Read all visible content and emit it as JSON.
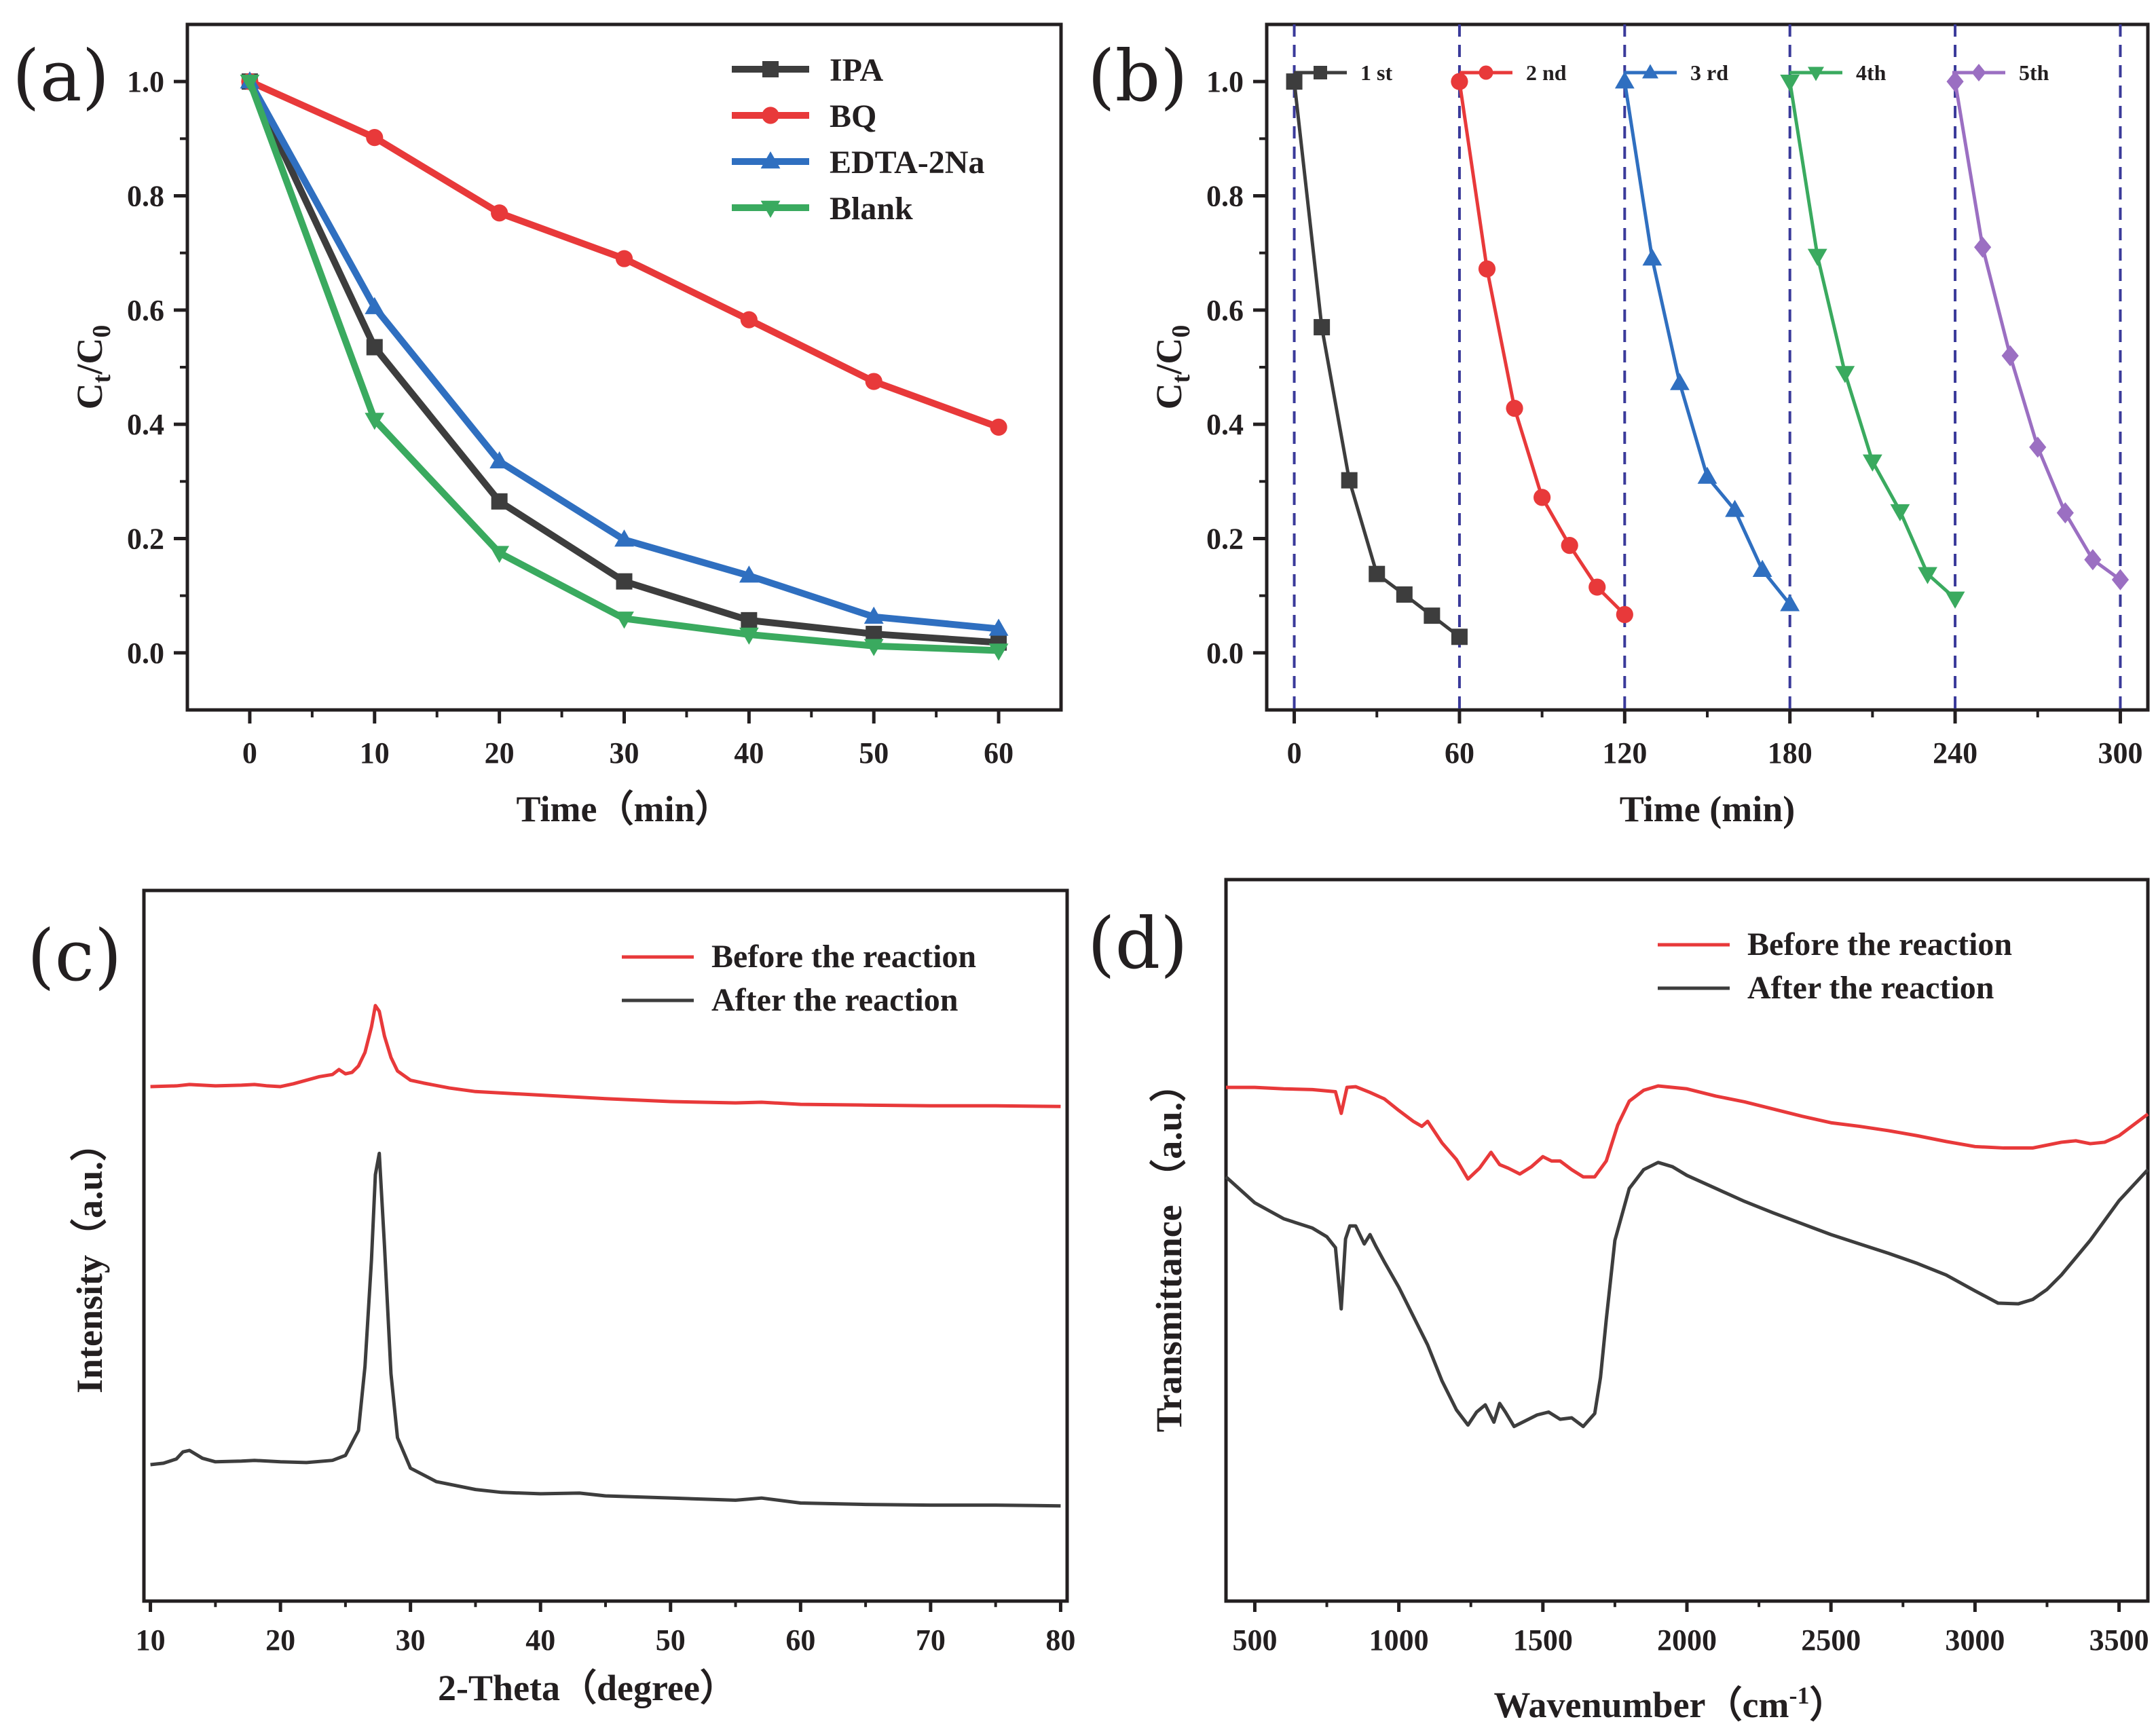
{
  "chart_data": [
    {
      "type": "line",
      "panel": "(a)",
      "xlabel": "Time（min）",
      "ylabel_main": "C",
      "ylabel_sub1": "t",
      "ylabel_slash": "/C",
      "ylabel_sub2": "0",
      "xlim": [
        -5,
        65
      ],
      "ylim": [
        -0.1,
        1.1
      ],
      "xticks": [
        0,
        10,
        20,
        30,
        40,
        50,
        60
      ],
      "yticks": [
        0.0,
        0.2,
        0.4,
        0.6,
        0.8,
        1.0
      ],
      "ytick_labels": [
        "0.0",
        "0.2",
        "0.4",
        "0.6",
        "0.8",
        "1.0"
      ],
      "legend_position": "top-right",
      "x": [
        0,
        10,
        20,
        30,
        40,
        50,
        60
      ],
      "series": [
        {
          "name": "IPA",
          "color": "#3d3d3d",
          "marker": "square",
          "values": [
            1.0,
            0.535,
            0.265,
            0.125,
            0.057,
            0.033,
            0.018
          ]
        },
        {
          "name": "BQ",
          "color": "#e8393a",
          "marker": "circle",
          "values": [
            1.0,
            0.902,
            0.77,
            0.69,
            0.583,
            0.475,
            0.395
          ]
        },
        {
          "name": "EDTA-2Na",
          "color": "#2f6fc0",
          "marker": "triangle-up",
          "values": [
            1.0,
            0.605,
            0.335,
            0.198,
            0.135,
            0.063,
            0.042
          ]
        },
        {
          "name": "Blank",
          "color": "#3aaa5f",
          "marker": "triangle-down",
          "values": [
            1.0,
            0.408,
            0.175,
            0.06,
            0.032,
            0.012,
            0.004
          ]
        }
      ]
    },
    {
      "type": "line",
      "panel": "(b)",
      "xlabel": "Time (min)",
      "ylabel_main": "C",
      "ylabel_sub1": "t",
      "ylabel_slash": "/C",
      "ylabel_sub2": "0",
      "xlim": [
        -10,
        310
      ],
      "ylim": [
        -0.1,
        1.1
      ],
      "xticks": [
        0,
        60,
        120,
        180,
        240,
        300
      ],
      "yticks": [
        0.0,
        0.2,
        0.4,
        0.6,
        0.8,
        1.0
      ],
      "ytick_labels": [
        "0.0",
        "0.2",
        "0.4",
        "0.6",
        "0.8",
        "1.0"
      ],
      "vlines": [
        0,
        60,
        120,
        180,
        240,
        300
      ],
      "vline_color": "#3a3a9a",
      "legend_position": "top",
      "series": [
        {
          "name": "1 st",
          "color": "#3d3d3d",
          "marker": "square",
          "x": [
            0,
            10,
            20,
            30,
            40,
            50,
            60
          ],
          "values": [
            1.0,
            0.57,
            0.302,
            0.138,
            0.102,
            0.065,
            0.028
          ]
        },
        {
          "name": "2 nd",
          "color": "#e8393a",
          "marker": "circle",
          "x": [
            60,
            70,
            80,
            90,
            100,
            110,
            120
          ],
          "values": [
            1.0,
            0.672,
            0.428,
            0.272,
            0.188,
            0.115,
            0.067
          ]
        },
        {
          "name": "3 rd",
          "color": "#2f6fc0",
          "marker": "triangle-up",
          "x": [
            120,
            130,
            140,
            150,
            160,
            170,
            180
          ],
          "values": [
            1.0,
            0.69,
            0.472,
            0.308,
            0.25,
            0.145,
            0.085
          ]
        },
        {
          "name": "4th",
          "color": "#3aaa5f",
          "marker": "triangle-down",
          "x": [
            180,
            190,
            200,
            210,
            220,
            230,
            240
          ],
          "values": [
            1.0,
            0.695,
            0.49,
            0.335,
            0.248,
            0.138,
            0.095
          ]
        },
        {
          "name": "5th",
          "color": "#9b6fc2",
          "marker": "diamond",
          "x": [
            240,
            250,
            260,
            270,
            280,
            290,
            300
          ],
          "values": [
            1.0,
            0.71,
            0.52,
            0.36,
            0.245,
            0.163,
            0.128
          ]
        }
      ]
    },
    {
      "type": "line",
      "panel": "(c)",
      "xlabel": "2-Theta（degree）",
      "ylabel": "Intensity（a.u.）",
      "xlim": [
        9.5,
        80.5
      ],
      "ylim": [
        0,
        1
      ],
      "xticks": [
        10,
        20,
        30,
        40,
        50,
        60,
        70,
        80
      ],
      "legend_position": "top-right",
      "series": [
        {
          "name": "Before the reaction",
          "color": "#e8393a",
          "x": [
            10,
            12,
            13,
            15,
            17,
            18,
            19,
            20,
            21,
            22,
            23,
            24,
            24.5,
            25,
            25.5,
            26,
            26.5,
            27,
            27.3,
            27.6,
            28,
            28.5,
            29,
            30,
            31,
            33,
            35,
            40,
            45,
            50,
            55,
            57,
            60,
            65,
            70,
            75,
            80
          ],
          "values": [
            0.724,
            0.725,
            0.727,
            0.725,
            0.726,
            0.727,
            0.725,
            0.724,
            0.728,
            0.733,
            0.738,
            0.741,
            0.748,
            0.742,
            0.744,
            0.753,
            0.772,
            0.808,
            0.838,
            0.83,
            0.795,
            0.765,
            0.746,
            0.733,
            0.729,
            0.722,
            0.717,
            0.712,
            0.707,
            0.703,
            0.701,
            0.702,
            0.699,
            0.698,
            0.697,
            0.697,
            0.696
          ]
        },
        {
          "name": "After the reaction",
          "color": "#3d3d3d",
          "x": [
            10,
            11,
            12,
            12.5,
            13,
            14,
            15,
            17,
            18,
            20,
            22,
            24,
            25,
            26,
            26.5,
            27,
            27.3,
            27.6,
            28,
            28.5,
            29,
            30,
            32,
            35,
            37,
            40,
            43,
            45,
            50,
            55,
            57,
            60,
            65,
            70,
            75,
            80
          ],
          "values": [
            0.192,
            0.194,
            0.2,
            0.21,
            0.212,
            0.201,
            0.196,
            0.197,
            0.198,
            0.196,
            0.195,
            0.198,
            0.205,
            0.24,
            0.33,
            0.48,
            0.6,
            0.63,
            0.5,
            0.32,
            0.23,
            0.187,
            0.168,
            0.157,
            0.153,
            0.151,
            0.152,
            0.148,
            0.145,
            0.142,
            0.145,
            0.138,
            0.136,
            0.135,
            0.135,
            0.134
          ]
        }
      ],
      "ticks_y_hidden": true
    },
    {
      "type": "line",
      "panel": "(d)",
      "xlabel_main": "Wavenumber（cm",
      "xlabel_sup": "-1",
      "xlabel_end": "）",
      "ylabel": "Transmittance （a.u.）",
      "xlim": [
        400,
        3600
      ],
      "ylim": [
        0,
        1
      ],
      "xticks": [
        500,
        1000,
        1500,
        2000,
        2500,
        3000,
        3500
      ],
      "legend_position": "top-right",
      "series": [
        {
          "name": "Before the reaction",
          "color": "#e8393a",
          "x": [
            400,
            500,
            600,
            700,
            780,
            800,
            820,
            850,
            900,
            950,
            1000,
            1050,
            1080,
            1100,
            1150,
            1200,
            1240,
            1280,
            1320,
            1350,
            1380,
            1420,
            1460,
            1500,
            1530,
            1560,
            1600,
            1640,
            1680,
            1720,
            1760,
            1800,
            1850,
            1900,
            2000,
            2100,
            2200,
            2300,
            2400,
            2500,
            2600,
            2700,
            2800,
            2900,
            3000,
            3100,
            3200,
            3300,
            3350,
            3400,
            3450,
            3500,
            3600
          ],
          "values": [
            0.712,
            0.712,
            0.71,
            0.709,
            0.706,
            0.676,
            0.712,
            0.713,
            0.705,
            0.696,
            0.68,
            0.665,
            0.658,
            0.665,
            0.635,
            0.612,
            0.585,
            0.6,
            0.622,
            0.605,
            0.6,
            0.592,
            0.602,
            0.616,
            0.61,
            0.61,
            0.598,
            0.588,
            0.588,
            0.61,
            0.66,
            0.693,
            0.708,
            0.714,
            0.71,
            0.7,
            0.692,
            0.682,
            0.672,
            0.663,
            0.658,
            0.652,
            0.645,
            0.637,
            0.63,
            0.628,
            0.628,
            0.636,
            0.638,
            0.634,
            0.636,
            0.645,
            0.675
          ]
        },
        {
          "name": "After the reaction",
          "color": "#3d3d3d",
          "x": [
            400,
            450,
            500,
            600,
            700,
            750,
            780,
            800,
            815,
            830,
            850,
            880,
            900,
            920,
            950,
            1000,
            1050,
            1100,
            1150,
            1200,
            1240,
            1270,
            1300,
            1330,
            1350,
            1370,
            1400,
            1440,
            1480,
            1520,
            1560,
            1600,
            1640,
            1680,
            1700,
            1720,
            1750,
            1800,
            1850,
            1900,
            1950,
            2000,
            2100,
            2200,
            2300,
            2400,
            2500,
            2600,
            2700,
            2800,
            2900,
            3000,
            3080,
            3150,
            3200,
            3250,
            3300,
            3400,
            3500,
            3600
          ],
          "values": [
            0.588,
            0.57,
            0.552,
            0.53,
            0.517,
            0.505,
            0.49,
            0.405,
            0.502,
            0.52,
            0.52,
            0.495,
            0.508,
            0.492,
            0.47,
            0.435,
            0.395,
            0.355,
            0.305,
            0.265,
            0.244,
            0.262,
            0.272,
            0.248,
            0.274,
            0.262,
            0.242,
            0.25,
            0.258,
            0.262,
            0.252,
            0.254,
            0.242,
            0.26,
            0.31,
            0.39,
            0.5,
            0.572,
            0.598,
            0.608,
            0.602,
            0.59,
            0.572,
            0.554,
            0.538,
            0.523,
            0.508,
            0.495,
            0.482,
            0.468,
            0.452,
            0.43,
            0.413,
            0.412,
            0.418,
            0.432,
            0.452,
            0.5,
            0.555,
            0.598
          ]
        }
      ],
      "ticks_y_hidden": true
    }
  ],
  "figure": {
    "background": "#ffffff",
    "axis_color": "#231f20"
  }
}
